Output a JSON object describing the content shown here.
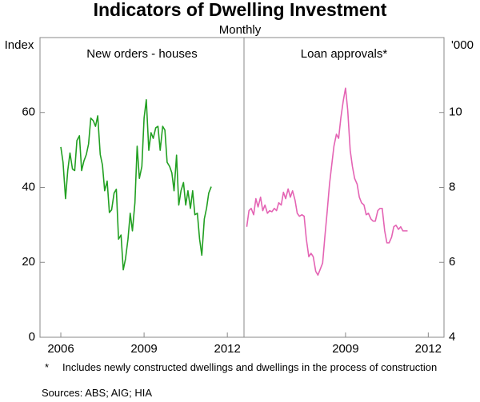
{
  "title": "Indicators of Dwelling Investment",
  "subtitle": "Monthly",
  "chart_data": [
    {
      "type": "line",
      "title": "New orders - houses",
      "y_label": "Index",
      "xlim": [
        2005.25,
        2012.6
      ],
      "xticks": [
        2006,
        2009,
        2012
      ],
      "ylim": [
        0,
        80
      ],
      "yticks": [
        0,
        20,
        40,
        60
      ],
      "x": [
        2006,
        2006.08,
        2006.17,
        2006.25,
        2006.33,
        2006.42,
        2006.5,
        2006.58,
        2006.67,
        2006.75,
        2006.83,
        2006.92,
        2007,
        2007.08,
        2007.17,
        2007.25,
        2007.33,
        2007.42,
        2007.5,
        2007.58,
        2007.67,
        2007.75,
        2007.83,
        2007.92,
        2008,
        2008.08,
        2008.17,
        2008.25,
        2008.33,
        2008.42,
        2008.5,
        2008.58,
        2008.67,
        2008.75,
        2008.83,
        2008.92,
        2009,
        2009.08,
        2009.17,
        2009.25,
        2009.33,
        2009.42,
        2009.5,
        2009.58,
        2009.67,
        2009.75,
        2009.83,
        2009.92,
        2010,
        2010.08,
        2010.17,
        2010.25,
        2010.33,
        2010.42,
        2010.5,
        2010.58,
        2010.67,
        2010.75,
        2010.83,
        2010.92,
        2011,
        2011.08,
        2011.17,
        2011.25,
        2011.33,
        2011.42
      ],
      "series": [
        {
          "name": "New orders - houses",
          "color": "#22a022",
          "values": [
            50.8,
            46.7,
            37,
            44.5,
            49.2,
            44.9,
            44.5,
            52.5,
            53.8,
            44.5,
            47,
            48.8,
            51.6,
            58.5,
            57.8,
            56.3,
            59.1,
            48.8,
            46,
            39.1,
            41.7,
            33.3,
            34,
            38.5,
            39.5,
            26.2,
            27.3,
            18,
            20.9,
            26.2,
            33.1,
            28.4,
            35.9,
            51,
            42.4,
            45.6,
            58.5,
            63.4,
            49.9,
            54.6,
            53.1,
            55.9,
            56.3,
            49.9,
            56.3,
            55.3,
            46.7,
            45.6,
            43.9,
            39.1,
            48.6,
            35.3,
            39.1,
            41.3,
            35.3,
            39.1,
            34.4,
            39.1,
            32.7,
            33.1,
            26.2,
            21.9,
            31.6,
            34.4,
            38.5,
            40.2
          ]
        }
      ]
    },
    {
      "type": "line",
      "title": "Loan approvals*",
      "y_label": "'000",
      "xlim": [
        2005.32,
        2012.57
      ],
      "xticks": [
        2009,
        2012
      ],
      "ylim": [
        4,
        12
      ],
      "yticks": [
        4,
        6,
        8,
        10
      ],
      "x": [
        2005.42,
        2005.5,
        2005.58,
        2005.67,
        2005.75,
        2005.83,
        2005.92,
        2006,
        2006.08,
        2006.17,
        2006.25,
        2006.33,
        2006.42,
        2006.5,
        2006.58,
        2006.67,
        2006.75,
        2006.83,
        2006.92,
        2007,
        2007.08,
        2007.17,
        2007.25,
        2007.33,
        2007.42,
        2007.5,
        2007.58,
        2007.67,
        2007.75,
        2007.83,
        2007.92,
        2008,
        2008.08,
        2008.17,
        2008.25,
        2008.33,
        2008.42,
        2008.5,
        2008.58,
        2008.67,
        2008.75,
        2008.83,
        2008.92,
        2009,
        2009.08,
        2009.17,
        2009.25,
        2009.33,
        2009.42,
        2009.5,
        2009.58,
        2009.67,
        2009.75,
        2009.83,
        2009.92,
        2010,
        2010.08,
        2010.17,
        2010.25,
        2010.33,
        2010.42,
        2010.5,
        2010.58,
        2010.67,
        2010.75,
        2010.83,
        2010.92,
        2011,
        2011.08,
        2011.17,
        2011.25
      ],
      "series": [
        {
          "name": "Loan approvals*",
          "color": "#e464b4",
          "values": [
            6.95,
            7.38,
            7.44,
            7.27,
            7.7,
            7.48,
            7.74,
            7.38,
            7.53,
            7.31,
            7.38,
            7.35,
            7.44,
            7.38,
            7.59,
            7.53,
            7.87,
            7.7,
            7.96,
            7.74,
            7.91,
            7.66,
            7.31,
            7.23,
            7.27,
            7.23,
            6.62,
            6.15,
            6.24,
            6.15,
            5.76,
            5.66,
            5.81,
            5.98,
            6.67,
            7.31,
            8.09,
            8.6,
            9.1,
            9.42,
            9.31,
            9.85,
            10.32,
            10.65,
            10.06,
            8.99,
            8.56,
            8.24,
            8.09,
            7.74,
            7.59,
            7.53,
            7.27,
            7.31,
            7.16,
            7.1,
            7.1,
            7.38,
            7.44,
            7.44,
            6.84,
            6.52,
            6.52,
            6.67,
            6.95,
            6.99,
            6.88,
            6.95,
            6.84,
            6.84,
            6.84
          ]
        }
      ]
    }
  ],
  "footnote_marker": "*",
  "footnote": "Includes newly constructed dwellings and dwellings in the process of construction",
  "sources": "Sources: ABS; AIG; HIA"
}
